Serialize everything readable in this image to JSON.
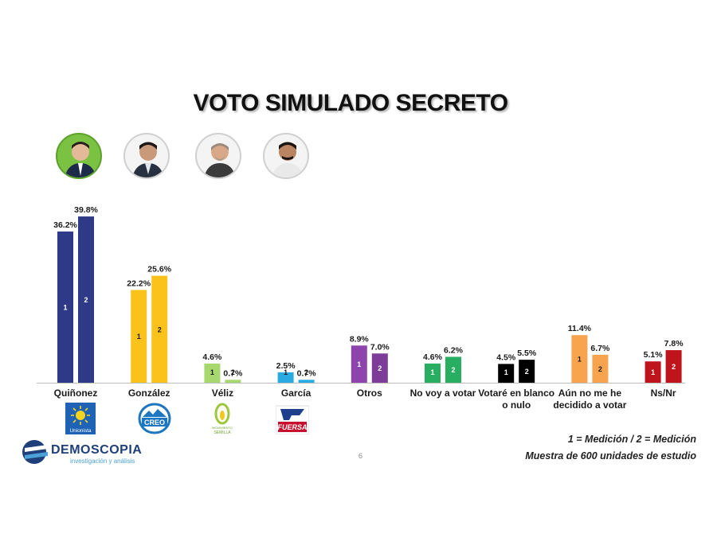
{
  "title": "VOTO SIMULADO SECRETO",
  "page_number": "6",
  "brand": {
    "name": "DEMOSCOPIA",
    "tagline": "investigación y análisis"
  },
  "notes": {
    "legend": "1 = Medición / 2 = Medición",
    "sample": "Muestra de 600 unidades de estudio"
  },
  "photos": [
    {
      "name": "Quiñonez photo"
    },
    {
      "name": "González photo"
    },
    {
      "name": "Véliz photo"
    },
    {
      "name": "García photo"
    }
  ],
  "party_logos": [
    {
      "name": "unionista-logo",
      "text": "Unionista",
      "color": "#1e63b6"
    },
    {
      "name": "creo-logo",
      "text": "CREO",
      "color": "#1d77c0"
    },
    {
      "name": "semilla-logo",
      "text": "MOVIMIENTO SEMILLA",
      "color": "#9cc83b"
    },
    {
      "name": "fuersa-logo",
      "text": "FUERSA",
      "color": "#c8102e"
    }
  ],
  "chart_data": {
    "type": "bar",
    "title": "VOTO SIMULADO SECRETO",
    "xlabel": "",
    "ylabel": "",
    "ylim": [
      0,
      40
    ],
    "grid": false,
    "legend": "bottom-right",
    "series_labels": [
      "1",
      "2"
    ],
    "categories": [
      {
        "label": [
          "Quiñonez"
        ],
        "colors": [
          "#2e3a87",
          "#2e3a87"
        ],
        "values": [
          36.2,
          39.8
        ],
        "labels": [
          "36.2%",
          "39.8%"
        ],
        "label_color": "#ffffff"
      },
      {
        "label": [
          "González"
        ],
        "colors": [
          "#fbc21b",
          "#fbc21b"
        ],
        "values": [
          22.2,
          25.6
        ],
        "labels": [
          "22.2%",
          "25.6%"
        ],
        "label_color": "#1a1a1a"
      },
      {
        "label": [
          "Véliz"
        ],
        "colors": [
          "#a7d86d",
          "#a7d86d"
        ],
        "values": [
          4.6,
          0.7
        ],
        "labels": [
          "4.6%",
          "0.7%"
        ],
        "label_color": "#1a1a1a"
      },
      {
        "label": [
          "García"
        ],
        "colors": [
          "#29abe2",
          "#29abe2"
        ],
        "values": [
          2.5,
          0.7
        ],
        "labels": [
          "2.5%",
          "0.7%"
        ],
        "label_color": "#1a1a1a"
      },
      {
        "label": [
          "Otros"
        ],
        "colors": [
          "#8e44ad",
          "#7d3c98"
        ],
        "values": [
          8.9,
          7.0
        ],
        "labels": [
          "8.9%",
          "7.0%"
        ],
        "label_color": "#ffffff"
      },
      {
        "label": [
          "No voy a votar"
        ],
        "colors": [
          "#27ae60",
          "#27ae60"
        ],
        "values": [
          4.6,
          6.2
        ],
        "labels": [
          "4.6%",
          "6.2%"
        ],
        "label_color": "#ffffff"
      },
      {
        "label": [
          "Votaré en blanco",
          "o nulo"
        ],
        "colors": [
          "#000000",
          "#000000"
        ],
        "values": [
          4.5,
          5.5
        ],
        "labels": [
          "4.5%",
          "5.5%"
        ],
        "label_color": "#ffffff"
      },
      {
        "label": [
          "Aún no me he",
          "decidido a votar"
        ],
        "colors": [
          "#f8a34e",
          "#f8a34e"
        ],
        "values": [
          11.4,
          6.7
        ],
        "labels": [
          "11.4%",
          "6.7%"
        ],
        "label_color": "#1a1a1a"
      },
      {
        "label": [
          "Ns/Nr"
        ],
        "colors": [
          "#c0141d",
          "#c0141d"
        ],
        "values": [
          5.1,
          7.8
        ],
        "labels": [
          "5.1%",
          "7.8%"
        ],
        "label_color": "#ffffff"
      }
    ]
  }
}
